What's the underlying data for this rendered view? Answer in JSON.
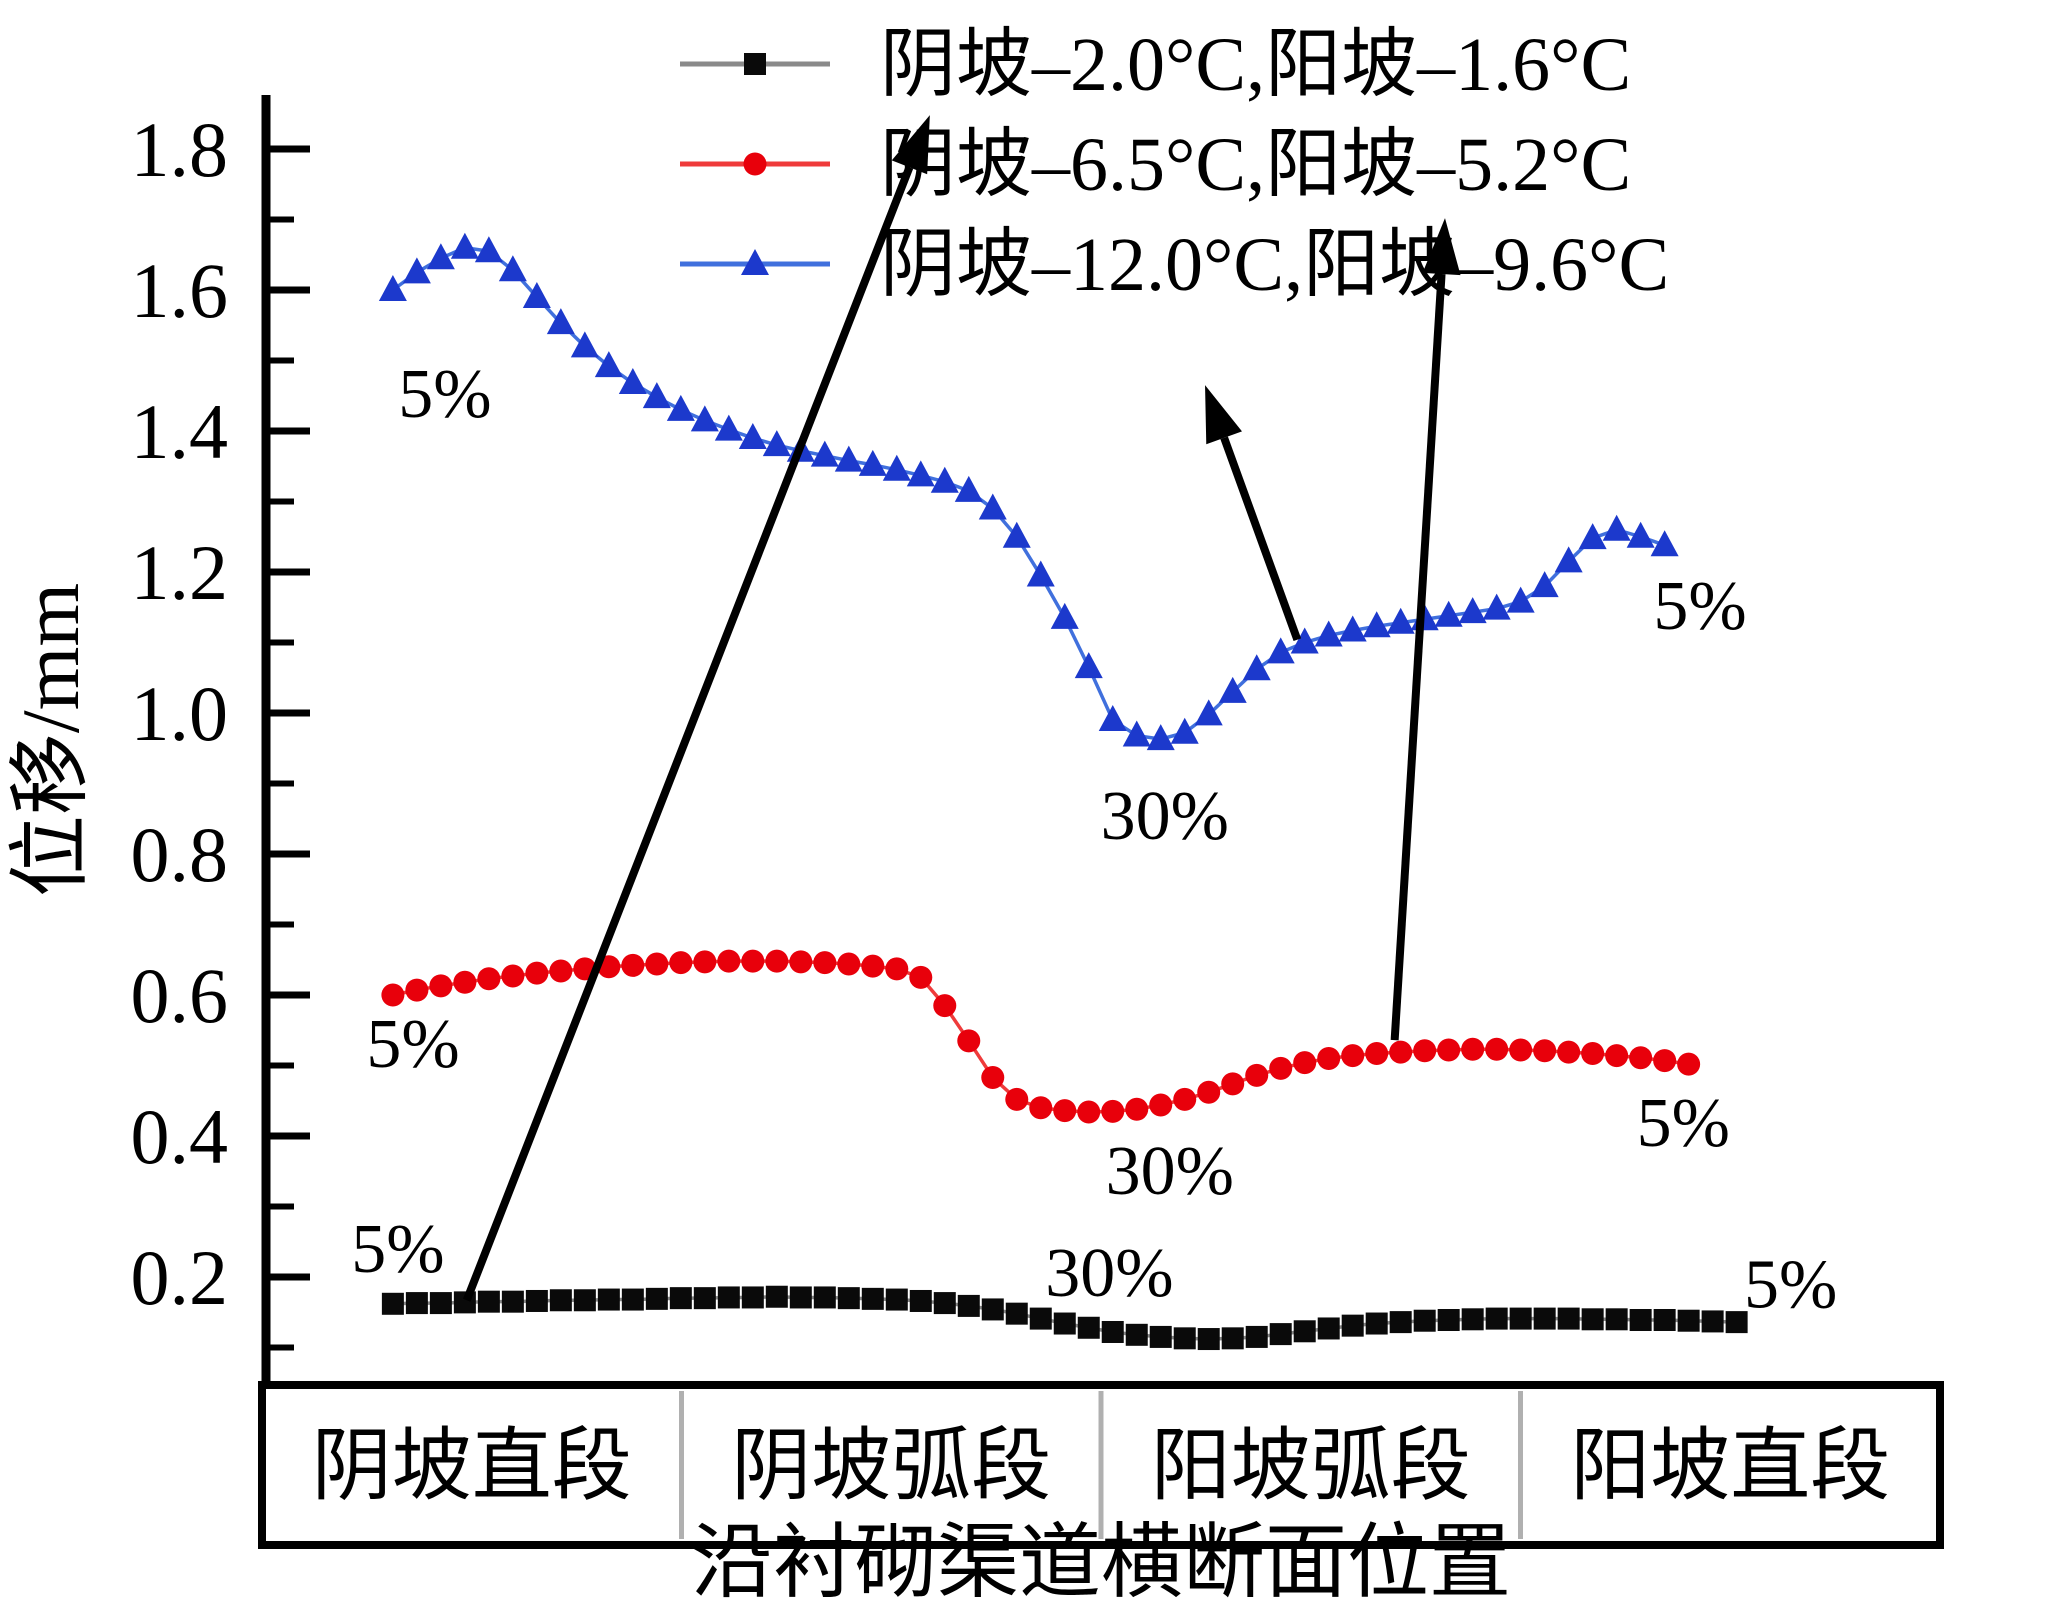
{
  "chart_data": {
    "type": "line",
    "title": "",
    "xlabel": "沿衬砌渠道横断面位置",
    "ylabel": "位移/mm",
    "x_categories": [
      "阴坡直段",
      "阴坡弧段",
      "阳坡弧段",
      "阳坡直段"
    ],
    "y_ticks": [
      0.2,
      0.4,
      0.6,
      0.8,
      1.0,
      1.2,
      1.4,
      1.6,
      1.8
    ],
    "y_minor_step": 0.1,
    "ylim": [
      0.05,
      1.88
    ],
    "grid": false,
    "legend_position": "top-center-inside",
    "x_axis_note": "categorical axis, four equal segments; series x given as fraction 0-1 of axis width",
    "series": [
      {
        "name": "阴坡–2.0°C,阳坡–1.6°C",
        "marker": "square",
        "marker_color": "#0a0a0a",
        "line_color": "#8a8a8a",
        "x0": 0.078,
        "dx": 0.0143,
        "values": [
          0.162,
          0.163,
          0.163,
          0.164,
          0.165,
          0.165,
          0.166,
          0.167,
          0.167,
          0.168,
          0.168,
          0.169,
          0.17,
          0.17,
          0.171,
          0.171,
          0.172,
          0.171,
          0.171,
          0.17,
          0.169,
          0.168,
          0.166,
          0.163,
          0.159,
          0.154,
          0.148,
          0.141,
          0.134,
          0.128,
          0.122,
          0.118,
          0.115,
          0.113,
          0.112,
          0.113,
          0.115,
          0.119,
          0.123,
          0.127,
          0.131,
          0.134,
          0.136,
          0.138,
          0.139,
          0.14,
          0.141,
          0.141,
          0.141,
          0.141,
          0.14,
          0.14,
          0.139,
          0.139,
          0.138,
          0.137,
          0.136
        ]
      },
      {
        "name": "阴坡–6.5°C,阳坡–5.2°C",
        "marker": "circle",
        "marker_color": "#e8000b",
        "line_color": "#ef3b3b",
        "x0": 0.078,
        "dx": 0.0143,
        "values": [
          0.6,
          0.607,
          0.613,
          0.618,
          0.623,
          0.627,
          0.631,
          0.634,
          0.637,
          0.64,
          0.642,
          0.644,
          0.646,
          0.647,
          0.648,
          0.648,
          0.648,
          0.647,
          0.646,
          0.644,
          0.641,
          0.637,
          0.625,
          0.585,
          0.535,
          0.483,
          0.452,
          0.44,
          0.436,
          0.434,
          0.435,
          0.438,
          0.444,
          0.452,
          0.462,
          0.474,
          0.486,
          0.496,
          0.504,
          0.51,
          0.514,
          0.517,
          0.519,
          0.521,
          0.522,
          0.523,
          0.523,
          0.522,
          0.521,
          0.519,
          0.517,
          0.514,
          0.511,
          0.507,
          0.502
        ]
      },
      {
        "name": "阴坡–12.0°C,阳坡–9.6°C",
        "marker": "triangle",
        "marker_color": "#1c39cc",
        "line_color": "#4070dd",
        "x0": 0.078,
        "dx": 0.0143,
        "values": [
          1.6,
          1.625,
          1.645,
          1.66,
          1.655,
          1.628,
          1.59,
          1.553,
          1.52,
          1.492,
          1.468,
          1.448,
          1.43,
          1.415,
          1.402,
          1.39,
          1.38,
          1.372,
          1.365,
          1.358,
          1.352,
          1.345,
          1.337,
          1.328,
          1.315,
          1.29,
          1.25,
          1.195,
          1.135,
          1.065,
          0.99,
          0.968,
          0.963,
          0.972,
          0.998,
          1.03,
          1.062,
          1.086,
          1.1,
          1.11,
          1.117,
          1.123,
          1.128,
          1.133,
          1.138,
          1.143,
          1.148,
          1.158,
          1.18,
          1.215,
          1.248,
          1.26,
          1.25,
          1.238
        ]
      }
    ],
    "annotations": {
      "labels": [
        {
          "text": "5%",
          "fx": 0.109,
          "v": 1.454,
          "refers_to": "blue-series-left"
        },
        {
          "text": "5%",
          "fx": 0.09,
          "v": 0.532,
          "refers_to": "red-series-left"
        },
        {
          "text": "5%",
          "fx": 0.081,
          "v": 0.241,
          "refers_to": "black-series-left"
        },
        {
          "text": "30%",
          "fx": 0.538,
          "v": 0.855,
          "refers_to": "blue-series-dip"
        },
        {
          "text": "30%",
          "fx": 0.541,
          "v": 0.352,
          "refers_to": "red-series-dip"
        },
        {
          "text": "30%",
          "fx": 0.505,
          "v": 0.207,
          "refers_to": "black-series-dip"
        },
        {
          "text": "5%",
          "fx": 0.857,
          "v": 1.153,
          "refers_to": "blue-series-right"
        },
        {
          "text": "5%",
          "fx": 0.847,
          "v": 0.42,
          "refers_to": "red-series-right"
        },
        {
          "text": "5%",
          "fx": 0.911,
          "v": 0.191,
          "refers_to": "black-series-right"
        }
      ],
      "arrows": [
        {
          "from_fx": 0.122,
          "from_v": 0.167,
          "to_fx": 0.398,
          "to_v": 1.848,
          "links": "black-series to legend row 1"
        },
        {
          "from_fx": 0.617,
          "from_v": 1.104,
          "to_fx": 0.562,
          "to_v": 1.465,
          "links": "blue-series to legend row 3"
        },
        {
          "from_fx": 0.675,
          "from_v": 0.536,
          "to_fx": 0.705,
          "to_v": 1.702,
          "links": "red-series to legend row 2"
        }
      ]
    },
    "colors": {
      "axis": "#000000",
      "category_divider": "#b0b0b0",
      "background": "#ffffff"
    }
  }
}
